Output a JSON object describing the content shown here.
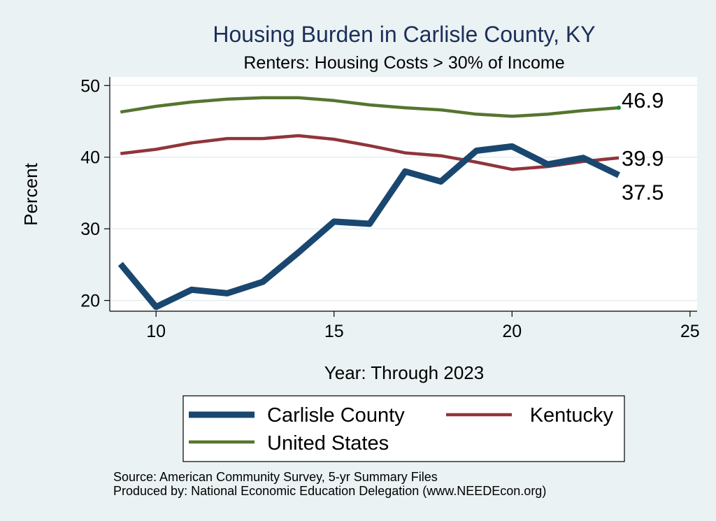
{
  "chart_data": {
    "type": "line",
    "title": "Housing Burden in Carlisle County, KY",
    "subtitle": "Renters: Housing Costs > 30% of Income",
    "xlabel": "Year: Through 2023",
    "ylabel": "Percent",
    "xlim": [
      8.7,
      25.2
    ],
    "ylim": [
      18.5,
      51.2
    ],
    "xticks": [
      10,
      15,
      20,
      25
    ],
    "yticks": [
      20,
      30,
      40,
      50
    ],
    "grid": "horizontal",
    "legend_position": "bottom",
    "x": [
      9,
      10,
      11,
      12,
      13,
      14,
      15,
      16,
      17,
      18,
      19,
      20,
      21,
      22,
      23
    ],
    "series": [
      {
        "name": "Carlisle County",
        "color": "#1a476f",
        "values": [
          25.1,
          19.1,
          21.5,
          21.0,
          22.6,
          26.7,
          31.0,
          30.7,
          38.0,
          36.6,
          40.9,
          41.5,
          39.0,
          39.9,
          37.5
        ],
        "end_label": "37.5"
      },
      {
        "name": "Kentucky",
        "color": "#90353b",
        "values": [
          40.5,
          41.1,
          42.0,
          42.6,
          42.6,
          43.0,
          42.5,
          41.6,
          40.6,
          40.2,
          39.3,
          38.3,
          38.7,
          39.4,
          39.9
        ],
        "end_label": "39.9"
      },
      {
        "name": "United States",
        "color": "#55752f",
        "values": [
          46.3,
          47.1,
          47.7,
          48.1,
          48.3,
          48.3,
          47.9,
          47.3,
          46.9,
          46.6,
          46.0,
          45.7,
          46.0,
          46.5,
          46.9
        ],
        "end_label": "46.9"
      }
    ]
  },
  "footer": {
    "source": "Source: American Community Survey, 5-yr Summary Files",
    "produced_by": "Produced by: National Economic Education Delegation (www.NEEDEcon.org)"
  }
}
